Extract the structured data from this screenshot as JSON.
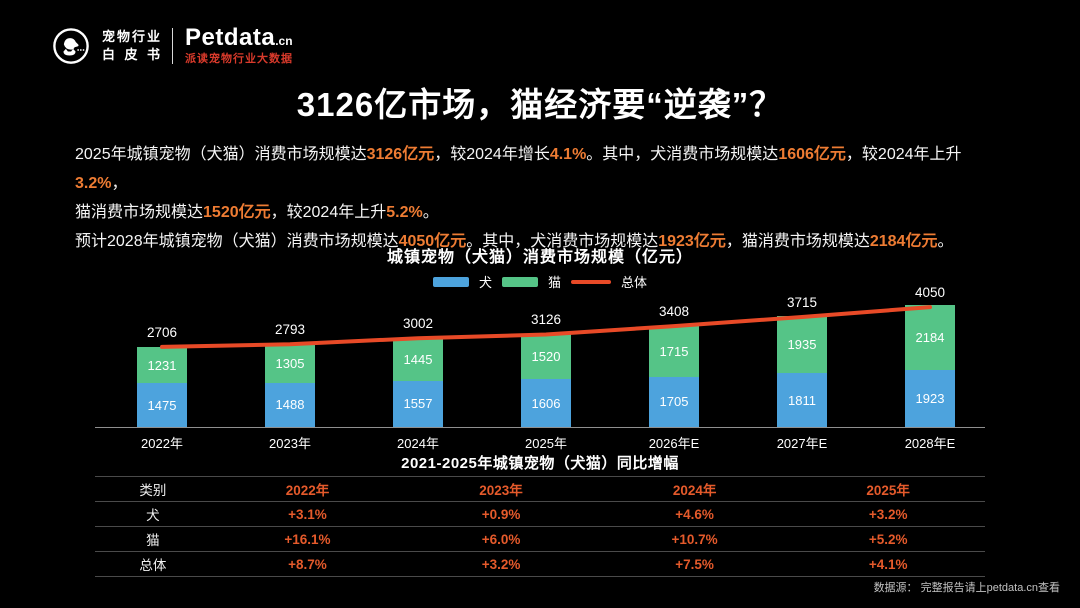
{
  "header": {
    "logo_title_line1": "宠物行业",
    "logo_title_line2": "白皮书",
    "brand_name": "Petdata",
    "brand_tld": ".cn",
    "brand_tagline": "派读宠物行业大数据"
  },
  "page_title": "3126亿市场，猫经济要“逆袭”？",
  "intro": {
    "l1a": "2025年城镇宠物（犬猫）消费市场规模达",
    "l1b": "3126亿元",
    "l1c": "，较2024年增长",
    "l1d": "4.1%",
    "l1e": "。其中，犬消费市场规模达",
    "l1f": "1606亿元",
    "l1g": "，较2024年上升",
    "l1h": "3.2%",
    "l1i": "，",
    "l2a": "猫消费市场规模达",
    "l2b": "1520亿元",
    "l2c": "，较2024年上升",
    "l2d": "5.2%",
    "l2e": "。",
    "l3a": "预计2028年城镇宠物（犬猫）消费市场规模达",
    "l3b": "4050亿元",
    "l3c": "。其中，犬消费市场规模达",
    "l3d": "1923亿元",
    "l3e": "，猫消费市场规模达",
    "l3f": "2184亿元",
    "l3g": "。"
  },
  "chart_data": {
    "type": "bar",
    "subtype": "stacked-bar-with-total-line",
    "title": "城镇宠物（犬猫）消费市场规模（亿元）",
    "categories": [
      "2022年",
      "2023年",
      "2024年",
      "2025年",
      "2026年E",
      "2027年E",
      "2028年E"
    ],
    "series": [
      {
        "name": "犬",
        "role": "bar-bottom",
        "color": "#4da3dd",
        "values": [
          1475,
          1488,
          1557,
          1606,
          1705,
          1811,
          1923
        ]
      },
      {
        "name": "猫",
        "role": "bar-top",
        "color": "#55c487",
        "values": [
          1231,
          1305,
          1445,
          1520,
          1715,
          1935,
          2184
        ]
      },
      {
        "name": "总体",
        "role": "line",
        "color": "#e84a27",
        "values": [
          2706,
          2793,
          3002,
          3126,
          3408,
          3715,
          4050
        ]
      }
    ],
    "ylim": [
      0,
      4460
    ],
    "grid": false,
    "legend_position": "top",
    "value_labels": "inside-segments-and-above-total"
  },
  "table": {
    "title": "2021-2025年城镇宠物（犬猫）同比增幅",
    "header": [
      "类别",
      "2022年",
      "2023年",
      "2024年",
      "2025年"
    ],
    "rows": [
      {
        "label": "犬",
        "values": [
          "+3.1%",
          "+0.9%",
          "+4.6%",
          "+3.2%"
        ]
      },
      {
        "label": "猫",
        "values": [
          "+16.1%",
          "+6.0%",
          "+10.7%",
          "+5.2%"
        ]
      },
      {
        "label": "总体",
        "values": [
          "+8.7%",
          "+3.2%",
          "+7.5%",
          "+4.1%"
        ]
      }
    ]
  },
  "footer": {
    "source": "数据源： 完整报告请上petdata.cn查看"
  },
  "colors": {
    "background": "#000000",
    "highlight_orange": "#ee7c33",
    "table_red": "#e55a2b",
    "dog_blue": "#4da3dd",
    "cat_green": "#55c487",
    "total_line_red": "#e84a27",
    "brand_red": "#d93a2b"
  }
}
